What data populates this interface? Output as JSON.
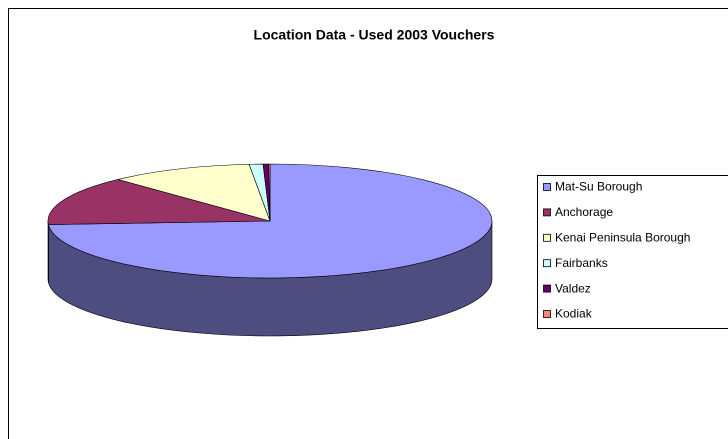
{
  "chart_data": {
    "type": "pie",
    "title": "Location Data - Used 2003 Vouchers",
    "categories": [
      "Mat-Su Borough",
      "Anchorage",
      "Kenai Peninsula Borough",
      "Fairbanks",
      "Valdez",
      "Kodiak"
    ],
    "values": [
      74,
      14,
      10.5,
      1,
      0.4,
      0.1
    ],
    "colors": [
      "#9999ff",
      "#993366",
      "#ffffcc",
      "#ccffff",
      "#660066",
      "#ff8080"
    ],
    "three_d": true,
    "legend": "right"
  }
}
